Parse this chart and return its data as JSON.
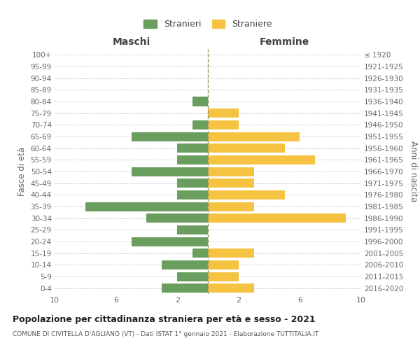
{
  "age_groups": [
    "0-4",
    "5-9",
    "10-14",
    "15-19",
    "20-24",
    "25-29",
    "30-34",
    "35-39",
    "40-44",
    "45-49",
    "50-54",
    "55-59",
    "60-64",
    "65-69",
    "70-74",
    "75-79",
    "80-84",
    "85-89",
    "90-94",
    "95-99",
    "100+"
  ],
  "birth_years": [
    "2016-2020",
    "2011-2015",
    "2006-2010",
    "2001-2005",
    "1996-2000",
    "1991-1995",
    "1986-1990",
    "1981-1985",
    "1976-1980",
    "1971-1975",
    "1966-1970",
    "1961-1965",
    "1956-1960",
    "1951-1955",
    "1946-1950",
    "1941-1945",
    "1936-1940",
    "1931-1935",
    "1926-1930",
    "1921-1925",
    "≤ 1920"
  ],
  "males": [
    3,
    2,
    3,
    1,
    5,
    2,
    4,
    8,
    2,
    2,
    5,
    2,
    2,
    5,
    1,
    0,
    1,
    0,
    0,
    0,
    0
  ],
  "females": [
    3,
    2,
    2,
    3,
    0,
    0,
    9,
    3,
    5,
    3,
    3,
    7,
    5,
    6,
    2,
    2,
    0,
    0,
    0,
    0,
    0
  ],
  "male_color": "#6a9e5f",
  "female_color": "#f5c242",
  "center_line_color": "#999966",
  "title": "Popolazione per cittadinanza straniera per età e sesso - 2021",
  "subtitle": "COMUNE DI CIVITELLA D'AGLIANO (VT) - Dati ISTAT 1° gennaio 2021 - Elaborazione TUTTITALIA.IT",
  "xlabel_left": "Maschi",
  "xlabel_right": "Femmine",
  "ylabel_left": "Fasce di età",
  "ylabel_right": "Anni di nascita",
  "legend_male": "Stranieri",
  "legend_female": "Straniere",
  "xlim": 10,
  "background_color": "#ffffff",
  "grid_color": "#cccccc"
}
